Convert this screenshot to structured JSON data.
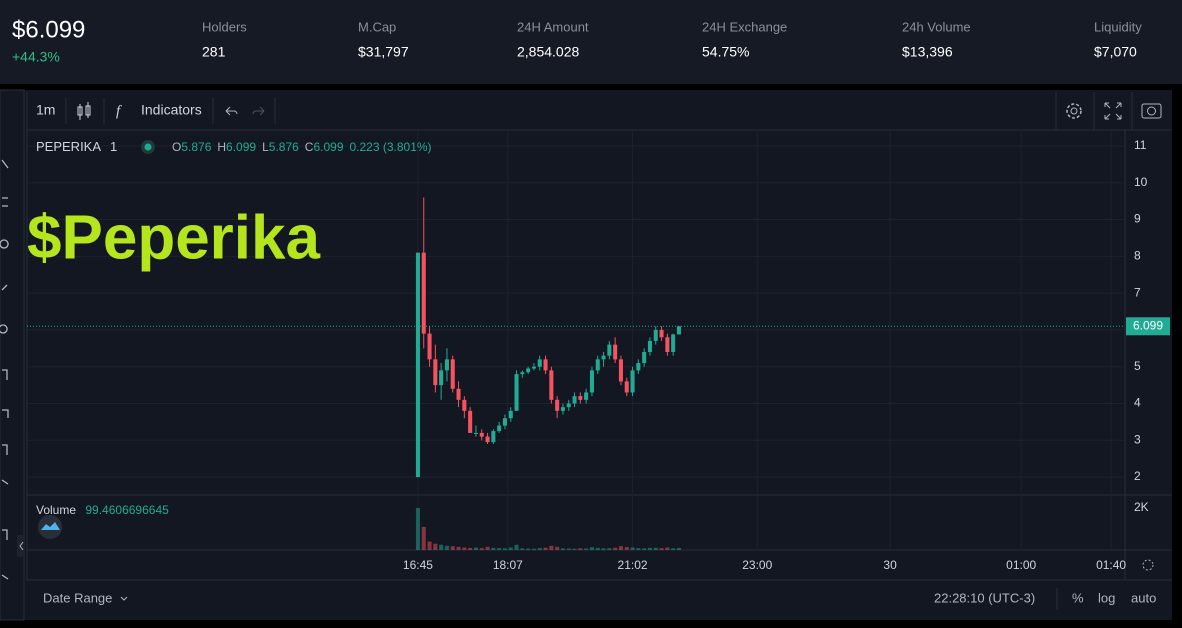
{
  "header": {
    "price": "$6.099",
    "change": "+44.3%",
    "stats": [
      {
        "label": "Holders",
        "value": "281"
      },
      {
        "label": "M.Cap",
        "value": "$31,797"
      },
      {
        "label": "24H Amount",
        "value": "2,854.028"
      },
      {
        "label": "24H Exchange",
        "value": "54.75%"
      },
      {
        "label": "24h Volume",
        "value": "$13,396"
      },
      {
        "label": "Liquidity",
        "value": "$7,070"
      }
    ]
  },
  "toolbar": {
    "interval": "1m",
    "indicators": "Indicators"
  },
  "footer": {
    "date_range": "Date Range",
    "clock": "22:28:10 (UTC-3)",
    "buttons": [
      "%",
      "log",
      "auto"
    ]
  },
  "chart_data": {
    "type": "candlestick",
    "watermark": "$Peperika",
    "symbol": "PEPERIKA",
    "interval": "1",
    "legend": [
      {
        "label": "O",
        "value": "5.876"
      },
      {
        "label": "H",
        "value": "6.099"
      },
      {
        "label": "L",
        "value": "5.876"
      },
      {
        "label": "C",
        "value": "6.099"
      }
    ],
    "legend_change": "0.223 (3.801%)",
    "up_color": "#22ab94",
    "down_color": "#f7525f",
    "grid": true,
    "ylim": [
      1.54,
      11.38
    ],
    "yticks": [
      2,
      3,
      4,
      5,
      6,
      7,
      8,
      9,
      10,
      11
    ],
    "xlim": [
      -67.4,
      121.9
    ],
    "xticks": [
      {
        "value": 0,
        "label": "16:45"
      },
      {
        "value": 15.5,
        "label": "18:07"
      },
      {
        "value": 37,
        "label": "21:02"
      },
      {
        "value": 58.5,
        "label": "23:00"
      },
      {
        "value": 81.4,
        "label": "30"
      },
      {
        "value": 104,
        "label": "01:00"
      },
      {
        "value": 119.5,
        "label": "01:40"
      }
    ],
    "last_price": 6.099,
    "ohlc": [
      [
        2.0,
        8.1,
        2.0,
        8.1
      ],
      [
        8.1,
        9.6,
        5.5,
        5.9
      ],
      [
        5.9,
        6.1,
        5.0,
        5.2
      ],
      [
        5.2,
        5.6,
        4.3,
        4.5
      ],
      [
        4.5,
        5.1,
        4.1,
        4.9
      ],
      [
        4.9,
        5.5,
        4.6,
        5.2
      ],
      [
        5.2,
        5.3,
        4.3,
        4.4
      ],
      [
        4.4,
        4.6,
        3.9,
        4.1
      ],
      [
        4.1,
        4.2,
        3.6,
        3.8
      ],
      [
        3.8,
        3.9,
        3.2,
        3.2
      ],
      [
        3.2,
        3.4,
        3.1,
        3.2
      ],
      [
        3.2,
        3.3,
        3.0,
        3.1
      ],
      [
        3.1,
        3.2,
        2.9,
        2.95
      ],
      [
        2.95,
        3.3,
        2.9,
        3.25
      ],
      [
        3.25,
        3.5,
        3.2,
        3.4
      ],
      [
        3.4,
        3.7,
        3.3,
        3.6
      ],
      [
        3.6,
        3.9,
        3.5,
        3.8
      ],
      [
        3.8,
        4.9,
        3.8,
        4.8
      ],
      [
        4.8,
        4.9,
        4.7,
        4.85
      ],
      [
        4.85,
        5.0,
        4.8,
        4.95
      ],
      [
        4.95,
        5.1,
        4.9,
        5.0
      ],
      [
        5.0,
        5.3,
        4.9,
        5.2
      ],
      [
        5.2,
        5.3,
        4.8,
        4.9
      ],
      [
        4.9,
        5.0,
        4.0,
        4.1
      ],
      [
        4.1,
        4.2,
        3.6,
        3.8
      ],
      [
        3.8,
        4.0,
        3.7,
        3.9
      ],
      [
        3.9,
        4.1,
        3.8,
        4.0
      ],
      [
        4.0,
        4.3,
        3.9,
        4.2
      ],
      [
        4.2,
        4.3,
        4.0,
        4.1
      ],
      [
        4.1,
        4.4,
        4.0,
        4.3
      ],
      [
        4.3,
        5.0,
        4.2,
        4.9
      ],
      [
        4.9,
        5.3,
        4.8,
        5.2
      ],
      [
        5.2,
        5.4,
        5.0,
        5.3
      ],
      [
        5.3,
        5.7,
        5.2,
        5.6
      ],
      [
        5.6,
        5.8,
        5.1,
        5.2
      ],
      [
        5.2,
        5.3,
        4.5,
        4.6
      ],
      [
        4.6,
        4.7,
        4.2,
        4.3
      ],
      [
        4.3,
        5.0,
        4.2,
        4.9
      ],
      [
        4.9,
        5.2,
        4.8,
        5.1
      ],
      [
        5.1,
        5.5,
        5.0,
        5.4
      ],
      [
        5.4,
        5.8,
        5.3,
        5.7
      ],
      [
        5.7,
        6.1,
        5.6,
        6.0
      ],
      [
        6.0,
        6.1,
        5.7,
        5.8
      ],
      [
        5.8,
        5.9,
        5.3,
        5.4
      ],
      [
        5.4,
        5.9,
        5.3,
        5.876
      ],
      [
        5.876,
        6.099,
        5.876,
        6.099
      ]
    ],
    "volume": {
      "name": "Volume",
      "ylim": [
        0,
        2570
      ],
      "yticks": [
        {
          "value": 2000,
          "label": "2K"
        }
      ],
      "values": [
        2000,
        1100,
        400,
        300,
        250,
        200,
        180,
        150,
        120,
        100,
        120,
        90,
        150,
        100,
        90,
        80,
        120,
        250,
        80,
        70,
        60,
        90,
        110,
        200,
        150,
        80,
        70,
        60,
        80,
        70,
        130,
        100,
        80,
        90,
        110,
        180,
        140,
        120,
        90,
        80,
        100,
        110,
        90,
        120,
        80,
        99.4606696645
      ]
    }
  }
}
